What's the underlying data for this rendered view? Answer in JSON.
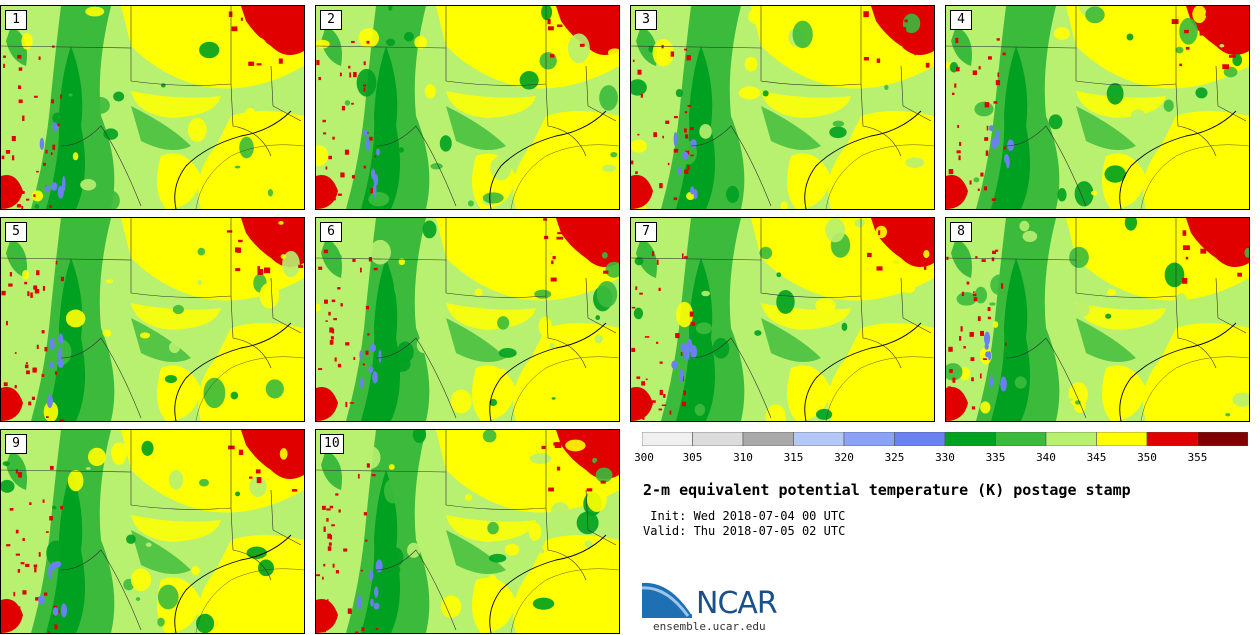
{
  "panels": [
    "1",
    "2",
    "3",
    "4",
    "5",
    "6",
    "7",
    "8",
    "9",
    "10"
  ],
  "colorbar": {
    "levels": [
      "300",
      "305",
      "310",
      "315",
      "320",
      "325",
      "330",
      "335",
      "340",
      "345",
      "350",
      "355"
    ],
    "colors": [
      "#f0f0f0",
      "#dcdcdc",
      "#a9a9a9",
      "#b4c8f8",
      "#8aa2f8",
      "#6a82f0",
      "#00a020",
      "#3cba3c",
      "#b8f070",
      "#ffff00",
      "#e00000",
      "#800000"
    ]
  },
  "title": "2-m equivalent potential temperature (K) postage stamp",
  "init": " Init: Wed 2018-07-04 00 UTC",
  "valid": "Valid: Thu 2018-07-05 02 UTC",
  "logo": {
    "name": "NCAR",
    "url": "ensemble.ucar.edu"
  }
}
